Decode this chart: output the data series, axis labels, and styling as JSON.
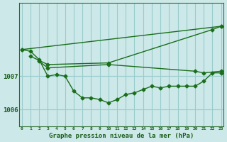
{
  "xlabel": "Graphe pression niveau de la mer (hPa)",
  "background_color": "#cce8e8",
  "grid_color": "#99cccc",
  "line_color": "#1a6e1a",
  "ylim": [
    1005.5,
    1009.2
  ],
  "xlim": [
    -0.3,
    23.3
  ],
  "yticks": [
    1006,
    1007
  ],
  "xticks": [
    0,
    1,
    2,
    3,
    4,
    5,
    6,
    7,
    8,
    9,
    10,
    11,
    12,
    13,
    14,
    15,
    16,
    17,
    18,
    19,
    20,
    21,
    22,
    23
  ],
  "series": [
    {
      "x": [
        0,
        1,
        2,
        3,
        4,
        5,
        6,
        7,
        8,
        9,
        10,
        11,
        12,
        13,
        14,
        15,
        16,
        17,
        18,
        19,
        20,
        21,
        22,
        23
      ],
      "y": [
        1007.8,
        1007.75,
        1007.5,
        1007.0,
        1007.05,
        1007.0,
        1006.55,
        1006.35,
        1006.35,
        1006.3,
        1006.2,
        1006.3,
        1006.45,
        1006.5,
        1006.6,
        1006.7,
        1006.65,
        1006.7,
        1006.7,
        1006.7,
        1006.7,
        1006.85,
        1007.1,
        1007.1
      ]
    },
    {
      "x": [
        0,
        23
      ],
      "y": [
        1007.8,
        1008.5
      ]
    },
    {
      "x": [
        1,
        3,
        10,
        22,
        23
      ],
      "y": [
        1007.6,
        1007.35,
        1007.4,
        1008.4,
        1008.5
      ]
    },
    {
      "x": [
        2,
        3,
        10,
        20,
        21,
        23
      ],
      "y": [
        1007.45,
        1007.25,
        1007.35,
        1007.15,
        1007.1,
        1007.15
      ]
    }
  ]
}
